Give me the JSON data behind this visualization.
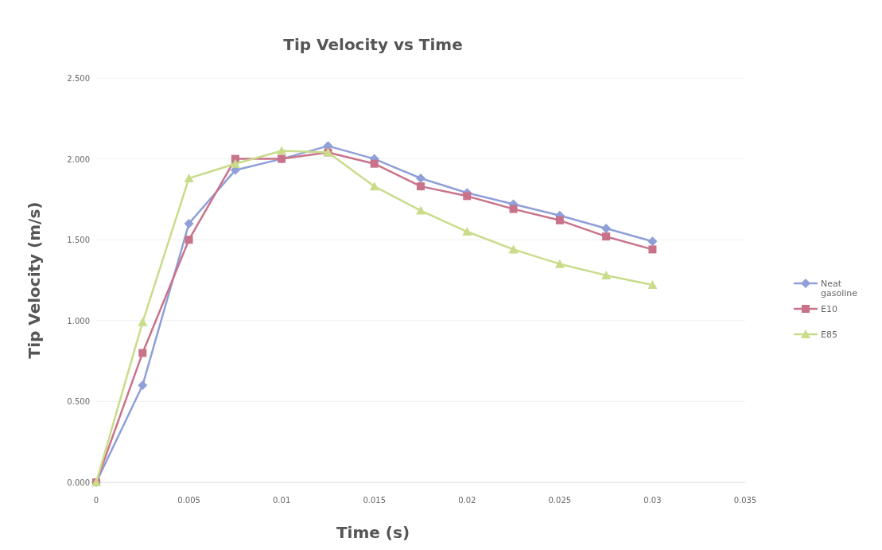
{
  "chart_data": {
    "type": "line",
    "title": "Tip Velocity vs Time",
    "xlabel": "Time (s)",
    "ylabel": "Tip Velocity (m/s)",
    "x": [
      0,
      0.0025,
      0.005,
      0.0075,
      0.01,
      0.0125,
      0.015,
      0.0175,
      0.02,
      0.0225,
      0.025,
      0.0275,
      0.03
    ],
    "series": [
      {
        "name": "Neat gasoline",
        "color": "#8f9fd8",
        "marker": "diamond",
        "values": [
          0,
          0.6,
          1.6,
          1.93,
          2.0,
          2.08,
          2.0,
          1.88,
          1.79,
          1.72,
          1.65,
          1.57,
          1.49
        ]
      },
      {
        "name": "E10",
        "color": "#c9738a",
        "marker": "square",
        "values": [
          0,
          0.8,
          1.5,
          2.0,
          2.0,
          2.04,
          1.97,
          1.83,
          1.77,
          1.69,
          1.62,
          1.52,
          1.44
        ]
      },
      {
        "name": "E85",
        "color": "#c8dc8a",
        "marker": "triangle",
        "values": [
          0,
          0.99,
          1.88,
          1.97,
          2.05,
          2.04,
          1.83,
          1.68,
          1.55,
          1.44,
          1.35,
          1.28,
          1.22
        ]
      }
    ],
    "xlim": [
      0,
      0.035
    ],
    "xticks": [
      0,
      0.005,
      0.01,
      0.015,
      0.02,
      0.025,
      0.03,
      0.035
    ],
    "ylim": [
      0,
      2.5
    ],
    "yticks": [
      {
        "value": 0,
        "label": "0.000"
      },
      {
        "value": 0.5,
        "label": "0.500"
      },
      {
        "value": 1,
        "label": "1.000"
      },
      {
        "value": 1.5,
        "label": "1.500"
      },
      {
        "value": 2,
        "label": "2.000"
      },
      {
        "value": 2.5,
        "label": "2.500"
      }
    ],
    "grid": "y",
    "legend": "right"
  }
}
